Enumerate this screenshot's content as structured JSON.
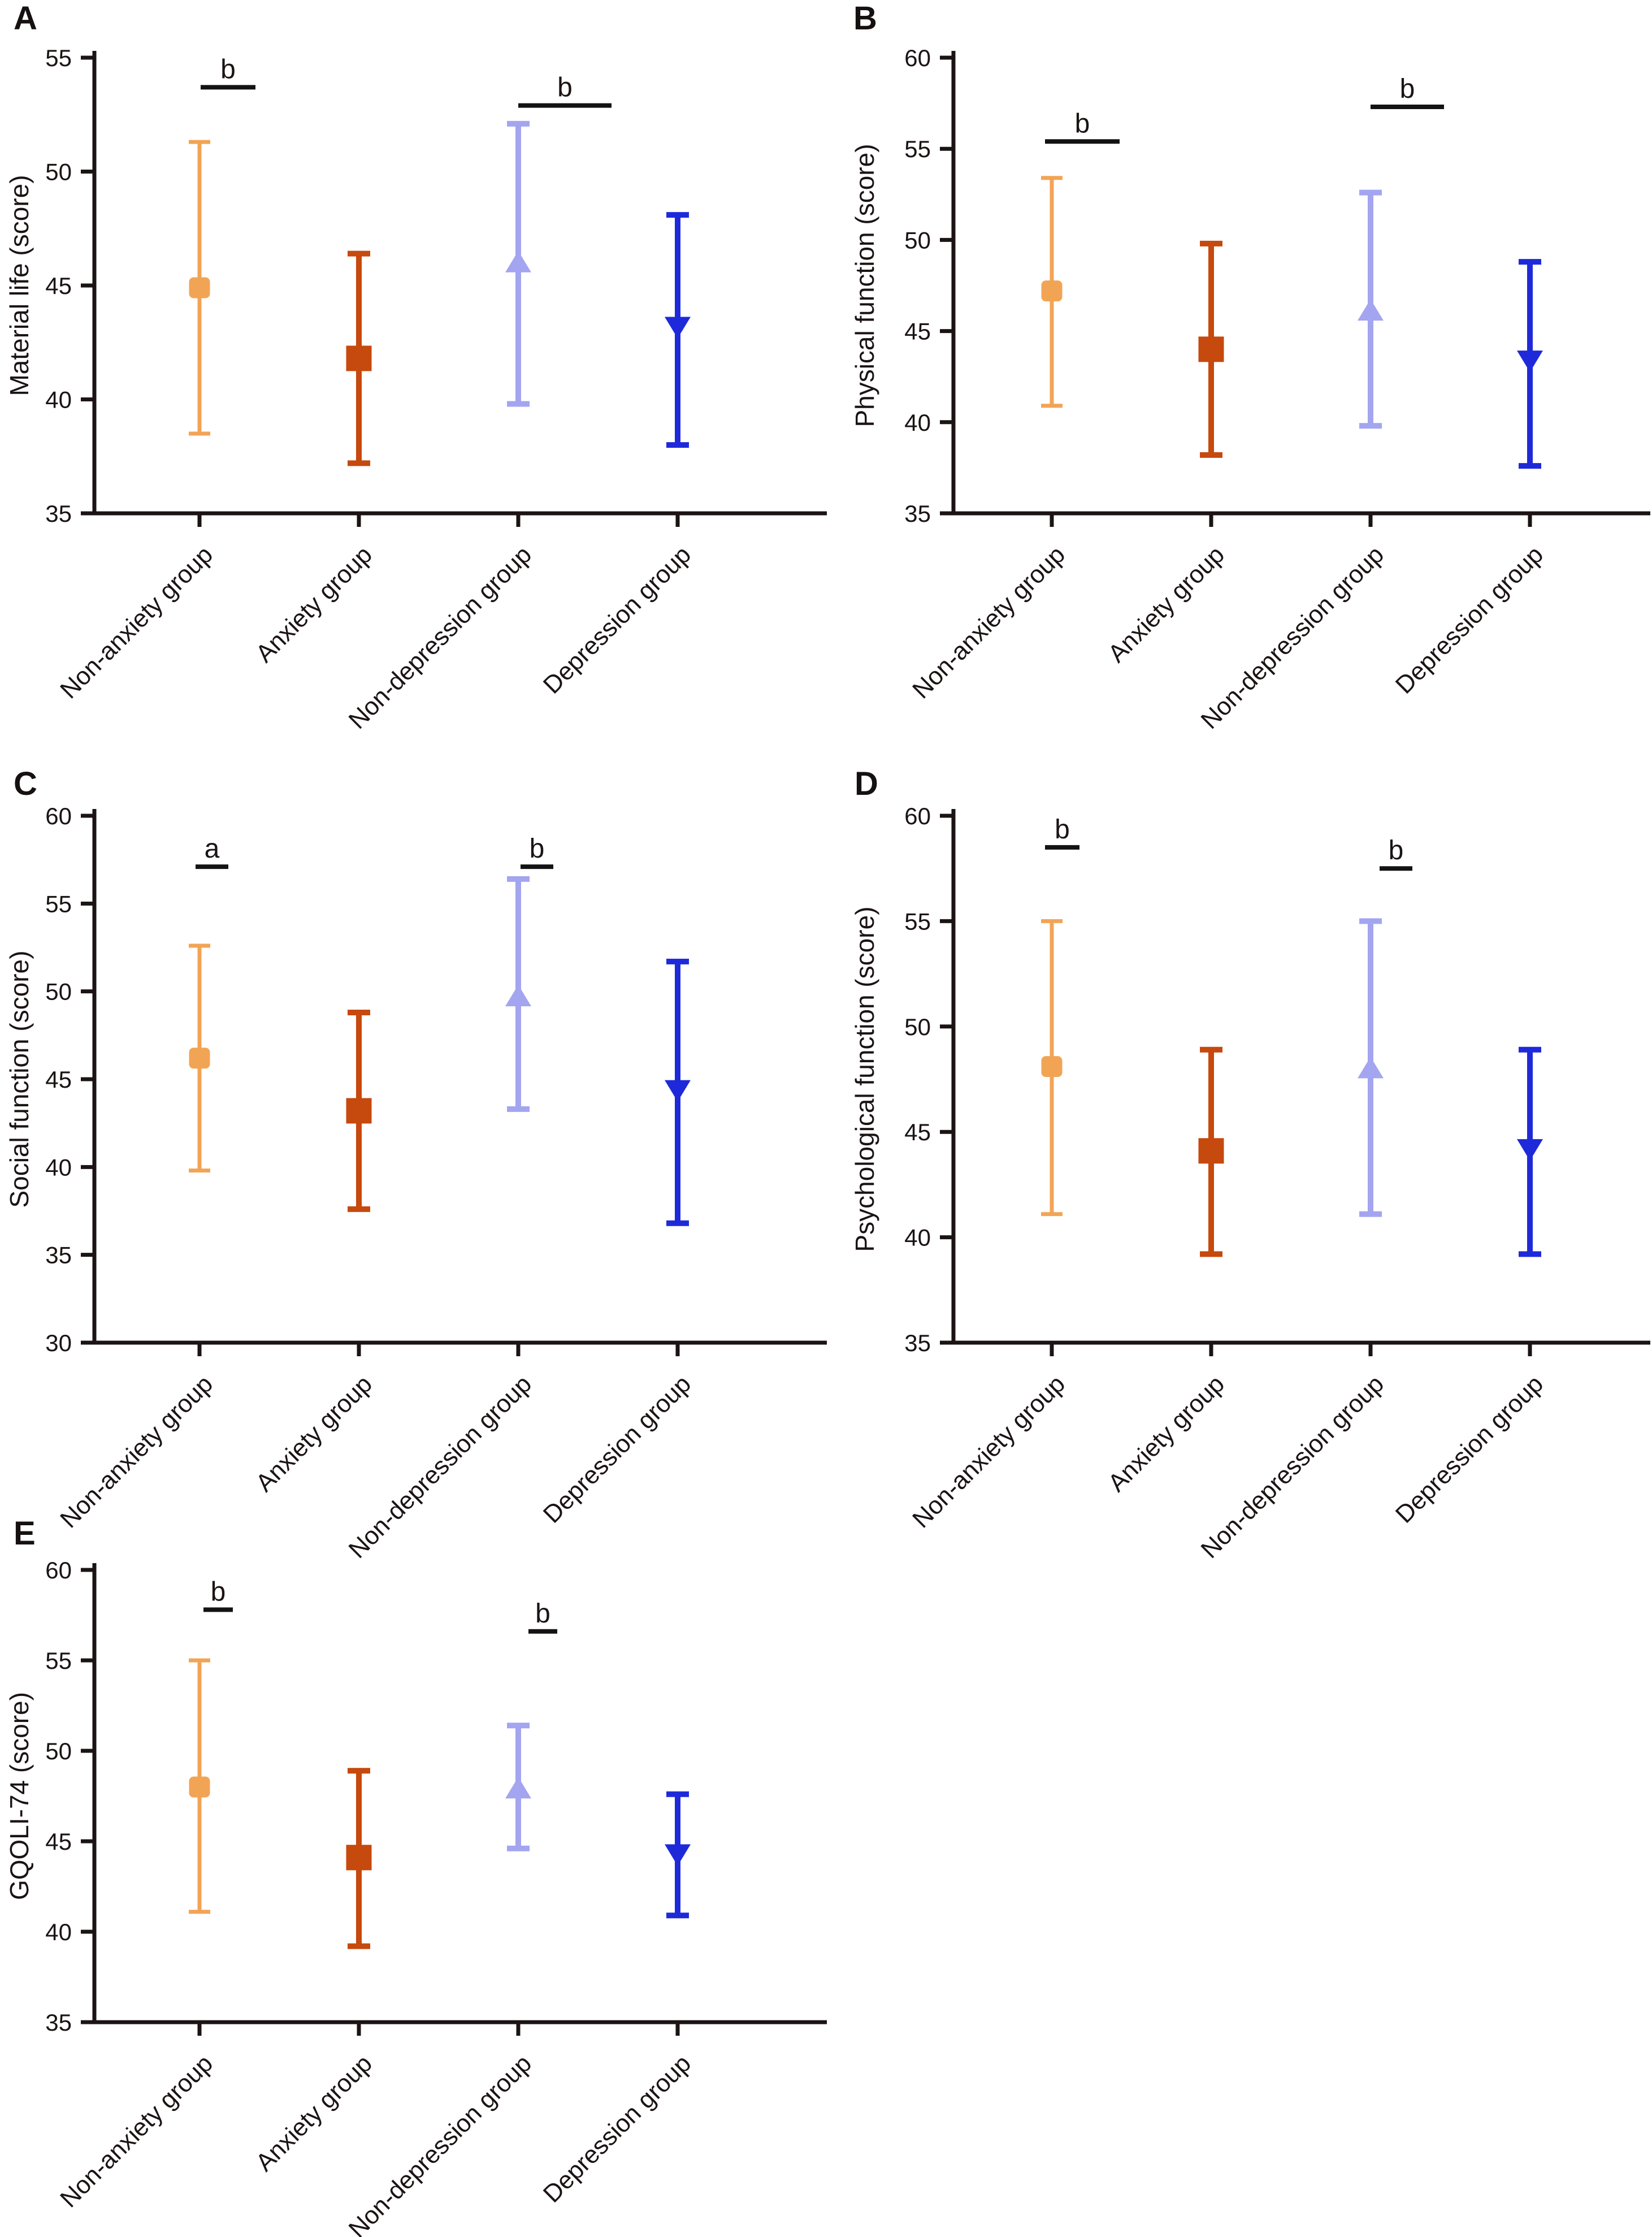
{
  "figure": {
    "background": "#ffffff",
    "text_color": "#1b1314",
    "axis_color": "#1b1314",
    "sig_color": "#131313",
    "groups": [
      "Non-anxiety group",
      "Anxiety group",
      "Non-depression group",
      "Depression group"
    ],
    "series_styles": [
      {
        "label": "Non-anxiety group",
        "marker": "square-rounded",
        "color": "#F2A455",
        "marker_size": 37,
        "line_width": 7,
        "cap_halfwidth": 19
      },
      {
        "label": "Anxiety group",
        "marker": "square",
        "color": "#C6490D",
        "marker_size": 45,
        "line_width": 10,
        "cap_halfwidth": 20
      },
      {
        "label": "Non-depression group",
        "marker": "triangle-up",
        "color": "#A3A5F0",
        "marker_size": 46,
        "line_width": 10,
        "cap_halfwidth": 20
      },
      {
        "label": "Depression group",
        "marker": "triangle-down",
        "color": "#1E2AD9",
        "marker_size": 46,
        "line_width": 10,
        "cap_halfwidth": 20
      }
    ]
  },
  "chart_data": [
    {
      "id": "A",
      "panel_label": "A",
      "type": "errorbar",
      "ylabel": "Material life (score)",
      "ylim": [
        35,
        55
      ],
      "yticks": [
        35,
        40,
        45,
        50,
        55
      ],
      "categories": [
        "Non-anxiety group",
        "Anxiety group",
        "Non-depression group",
        "Depression group"
      ],
      "points": [
        {
          "group": "Non-anxiety group",
          "mean": 44.9,
          "lower": 38.5,
          "upper": 51.3
        },
        {
          "group": "Anxiety group",
          "mean": 41.8,
          "lower": 37.2,
          "upper": 46.4
        },
        {
          "group": "Non-depression group",
          "mean": 46.0,
          "lower": 39.8,
          "upper": 52.1
        },
        {
          "group": "Depression group",
          "mean": 43.2,
          "lower": 38.0,
          "upper": 48.1
        }
      ],
      "significance": [
        {
          "label": "b",
          "group_index": 0,
          "line_y": 53.7,
          "dx0": 2,
          "dx1": 99
        },
        {
          "label": "b",
          "group_index": 2,
          "line_y": 52.9,
          "dx0": 0,
          "dx1": 165
        }
      ]
    },
    {
      "id": "B",
      "panel_label": "B",
      "type": "errorbar",
      "ylabel": "Physical function (score)",
      "ylim": [
        35,
        60
      ],
      "yticks": [
        35,
        40,
        45,
        50,
        55,
        60
      ],
      "categories": [
        "Non-anxiety group",
        "Anxiety group",
        "Non-depression group",
        "Depression group"
      ],
      "points": [
        {
          "group": "Non-anxiety group",
          "mean": 47.2,
          "lower": 40.9,
          "upper": 53.4
        },
        {
          "group": "Anxiety group",
          "mean": 44.0,
          "lower": 38.2,
          "upper": 49.8
        },
        {
          "group": "Non-depression group",
          "mean": 46.1,
          "lower": 39.8,
          "upper": 52.6
        },
        {
          "group": "Depression group",
          "mean": 43.4,
          "lower": 37.6,
          "upper": 48.8
        }
      ],
      "significance": [
        {
          "label": "b",
          "group_index": 0,
          "line_y": 55.4,
          "dx0": -12,
          "dx1": 120
        },
        {
          "label": "b",
          "group_index": 2,
          "line_y": 57.3,
          "dx0": 0,
          "dx1": 130
        }
      ]
    },
    {
      "id": "C",
      "panel_label": "C",
      "type": "errorbar",
      "ylabel": "Social function (score)",
      "ylim": [
        30,
        60
      ],
      "yticks": [
        30,
        35,
        40,
        45,
        50,
        55,
        60
      ],
      "categories": [
        "Non-anxiety group",
        "Anxiety group",
        "Non-depression group",
        "Depression group"
      ],
      "points": [
        {
          "group": "Non-anxiety group",
          "mean": 46.2,
          "lower": 39.8,
          "upper": 52.6
        },
        {
          "group": "Anxiety group",
          "mean": 43.2,
          "lower": 37.6,
          "upper": 48.8
        },
        {
          "group": "Non-depression group",
          "mean": 49.7,
          "lower": 43.3,
          "upper": 56.4
        },
        {
          "group": "Depression group",
          "mean": 44.4,
          "lower": 36.8,
          "upper": 51.7
        }
      ],
      "significance": [
        {
          "label": "a",
          "group_index": 0,
          "line_y": 57.1,
          "dx0": -7,
          "dx1": 51
        },
        {
          "label": "b",
          "group_index": 2,
          "line_y": 57.1,
          "dx0": 4,
          "dx1": 62
        }
      ]
    },
    {
      "id": "D",
      "panel_label": "D",
      "type": "errorbar",
      "ylabel": "Psychological function (score)",
      "ylim": [
        35,
        60
      ],
      "yticks": [
        35,
        40,
        45,
        50,
        55,
        60
      ],
      "categories": [
        "Non-anxiety group",
        "Anxiety group",
        "Non-depression group",
        "Depression group"
      ],
      "points": [
        {
          "group": "Non-anxiety group",
          "mean": 48.1,
          "lower": 41.1,
          "upper": 55.0
        },
        {
          "group": "Anxiety group",
          "mean": 44.1,
          "lower": 39.2,
          "upper": 48.9
        },
        {
          "group": "Non-depression group",
          "mean": 48.0,
          "lower": 41.1,
          "upper": 55.0
        },
        {
          "group": "Depression group",
          "mean": 44.2,
          "lower": 39.2,
          "upper": 48.9
        }
      ],
      "significance": [
        {
          "label": "b",
          "group_index": 0,
          "line_y": 58.5,
          "dx0": -12,
          "dx1": 49
        },
        {
          "label": "b",
          "group_index": 2,
          "line_y": 57.5,
          "dx0": 16,
          "dx1": 74
        }
      ]
    },
    {
      "id": "E",
      "panel_label": "E",
      "type": "errorbar",
      "ylabel": "GQOLI-74 (score)",
      "ylim": [
        35,
        60
      ],
      "yticks": [
        35,
        40,
        45,
        50,
        55,
        60
      ],
      "categories": [
        "Non-anxiety group",
        "Anxiety group",
        "Non-depression group",
        "Depression group"
      ],
      "points": [
        {
          "group": "Non-anxiety group",
          "mean": 48.0,
          "lower": 41.1,
          "upper": 55.0
        },
        {
          "group": "Anxiety group",
          "mean": 44.1,
          "lower": 39.2,
          "upper": 48.9
        },
        {
          "group": "Non-depression group",
          "mean": 47.9,
          "lower": 44.6,
          "upper": 51.4
        },
        {
          "group": "Depression group",
          "mean": 44.3,
          "lower": 40.9,
          "upper": 47.6
        }
      ],
      "significance": [
        {
          "label": "b",
          "group_index": 0,
          "line_y": 57.8,
          "dx0": 7,
          "dx1": 59
        },
        {
          "label": "b",
          "group_index": 2,
          "line_y": 56.6,
          "dx0": 18,
          "dx1": 69
        }
      ]
    }
  ]
}
